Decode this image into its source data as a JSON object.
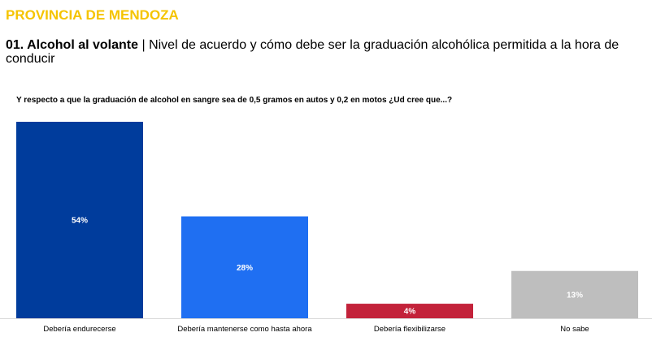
{
  "header": {
    "province": "PROVINCIA DE MENDOZA",
    "title_bold": "01. Alcohol al volante",
    "title_separator": " | ",
    "title_rest": "Nivel de acuerdo y cómo debe ser la graduación alcohólica permitida a la hora de conducir"
  },
  "question": "Y respecto a que la graduación de alcohol en sangre sea de 0,5 gramos en autos y 0,2 en motos ¿Ud cree que...?",
  "colors": {
    "province": "#f5c400",
    "bars": [
      "#003c9c",
      "#1f6ff2",
      "#c3223a",
      "#bebebe"
    ],
    "value_label": "#ffffff",
    "baseline": "#d9d9d9"
  },
  "chart_data": {
    "type": "bar",
    "categories": [
      "Debería endurecerse",
      "Debería mantenerse como hasta ahora",
      "Debería flexibilizarse",
      "No sabe"
    ],
    "values": [
      54,
      28,
      4,
      13
    ],
    "value_labels": [
      "54%",
      "28%",
      "4%",
      "13%"
    ],
    "unit": "%",
    "ylim": [
      0,
      54
    ],
    "grid": false,
    "legend": "none",
    "title": "",
    "xlabel": "",
    "ylabel": ""
  }
}
